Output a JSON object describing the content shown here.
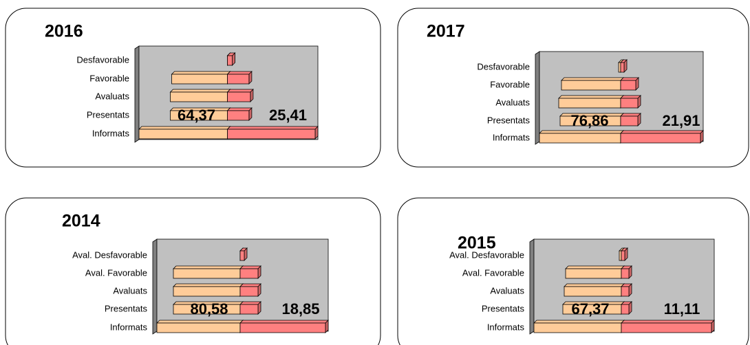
{
  "chart_data": [
    {
      "type": "bar",
      "title": "2016",
      "categories": [
        "Desfavorable",
        "Favorable",
        "Avaluats",
        "Presentats",
        "Informats"
      ],
      "series": [
        {
          "color": "#ffcc99",
          "values": [
            0,
            80,
            82,
            82,
            127
          ]
        },
        {
          "color": "#ff8080",
          "values": [
            7,
            31,
            33,
            31,
            126
          ]
        }
      ],
      "annotations": [
        "64,37",
        "25,41"
      ]
    },
    {
      "type": "bar",
      "title": "2017",
      "categories": [
        "Desfavorable",
        "Favorable",
        "Avaluats",
        "Presentats",
        "Informats"
      ],
      "series": [
        {
          "color": "#ffcc99",
          "values": [
            3,
            86,
            90,
            88,
            118
          ]
        },
        {
          "color": "#ff8080",
          "values": [
            5,
            22,
            25,
            25,
            116
          ]
        }
      ],
      "annotations": [
        "76,86",
        "21,91"
      ]
    },
    {
      "type": "bar",
      "title": "2014",
      "categories": [
        "Aval. Desfavorable",
        "Aval. Favorable",
        "Avaluats",
        "Presentats",
        "Informats"
      ],
      "series": [
        {
          "color": "#ffcc99",
          "values": [
            0,
            97,
            97,
            97,
            121
          ]
        },
        {
          "color": "#ff8080",
          "values": [
            6,
            26,
            26,
            26,
            124
          ]
        }
      ],
      "annotations": [
        "80,58",
        "18,85"
      ]
    },
    {
      "type": "bar",
      "title": "2015",
      "categories": [
        "Aval. Desfavorable",
        "Aval. Favorable",
        "Avaluats",
        "Presentats",
        "Informats"
      ],
      "series": [
        {
          "color": "#ffcc99",
          "values": [
            3,
            81,
            83,
            85,
            127
          ]
        },
        {
          "color": "#ff8080",
          "values": [
            5,
            11,
            11,
            11,
            131
          ]
        }
      ],
      "annotations": [
        "67,37",
        "11,11"
      ]
    }
  ]
}
